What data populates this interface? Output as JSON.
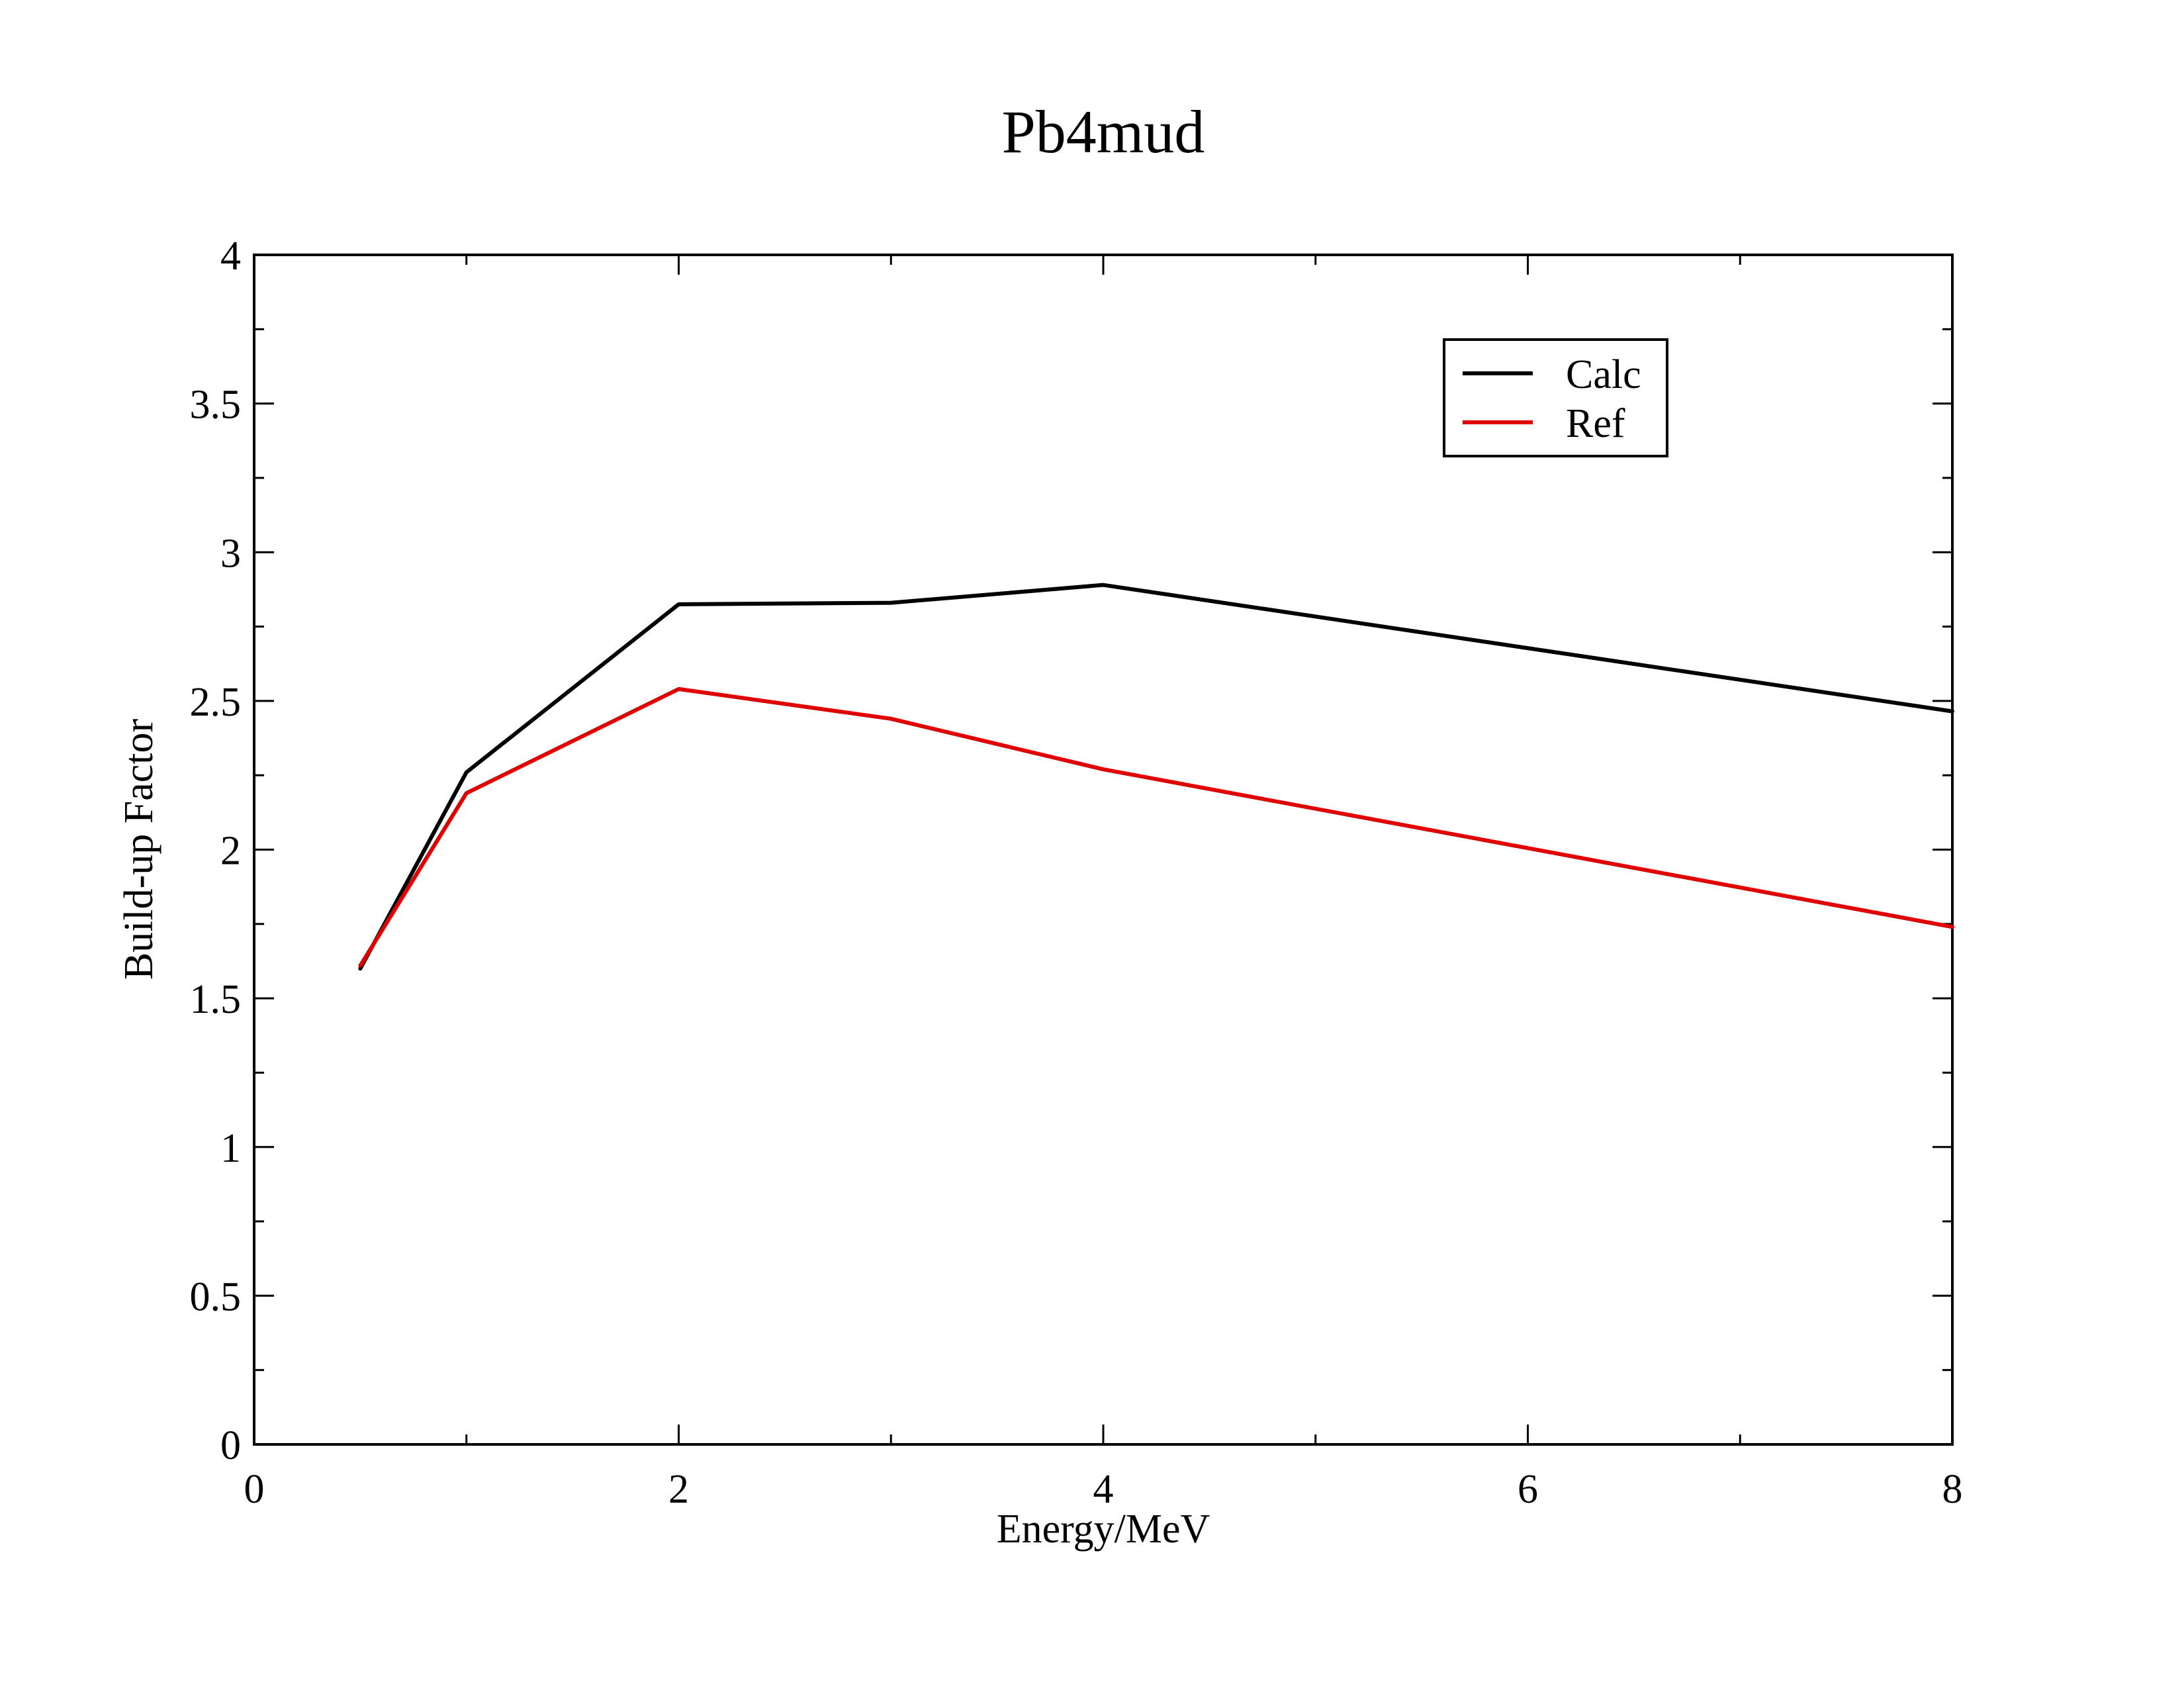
{
  "chart_data": {
    "type": "line",
    "title": "Pb4mud",
    "xlabel": "Energy/MeV",
    "ylabel": "Build-up Factor",
    "xlim": [
      0,
      8
    ],
    "ylim": [
      0,
      4
    ],
    "x_ticks": [
      0,
      2,
      4,
      6,
      8
    ],
    "y_ticks": [
      0,
      0.5,
      1,
      1.5,
      2,
      2.5,
      3,
      3.5,
      4
    ],
    "x_tick_labels": [
      "0",
      "2",
      "4",
      "6",
      "8"
    ],
    "y_tick_labels": [
      "0",
      "0.5",
      "1",
      "1.5",
      "2",
      "2.5",
      "3",
      "3.5",
      "4"
    ],
    "grid": false,
    "legend_position": "top-right",
    "series": [
      {
        "name": "Calc",
        "color": "#000000",
        "x": [
          0.5,
          1,
          2,
          3,
          4,
          8
        ],
        "y": [
          1.6,
          2.26,
          2.825,
          2.83,
          2.89,
          2.465
        ]
      },
      {
        "name": "Ref",
        "color": "#e00000",
        "x": [
          0.5,
          1,
          2,
          3,
          4,
          8
        ],
        "y": [
          1.61,
          2.19,
          2.54,
          2.44,
          2.27,
          1.74
        ]
      }
    ]
  }
}
